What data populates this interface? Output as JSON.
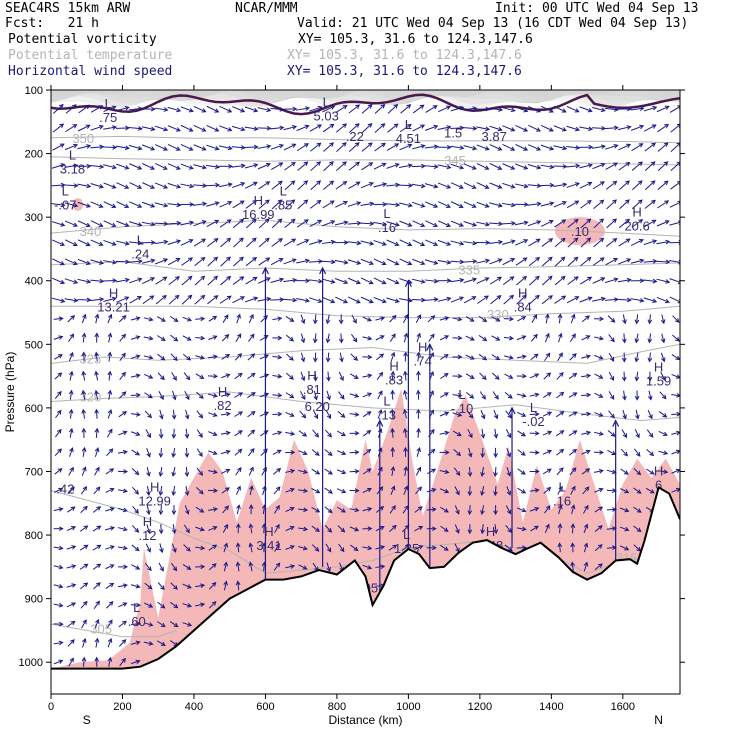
{
  "header": {
    "model": "SEAC4RS 15km ARW",
    "org": "NCAR/MMM",
    "init": "Init: 00 UTC Wed 04 Sep 13",
    "fcst": "Fcst:   21 h",
    "valid": "Valid: 21 UTC Wed 04 Sep 13 (16 CDT Wed 04 Sep 13)",
    "fields": [
      {
        "name": "Potential vorticity",
        "xy": "XY= 105.3, 31.6 to 124.3,147.6",
        "color": "#000000"
      },
      {
        "name": "Potential temperature",
        "xy": "XY= 105.3, 31.6 to 124.3,147.6",
        "color": "#b4b4b4"
      },
      {
        "name": "Horizontal wind speed",
        "xy": "XY= 105.3, 31.6 to 124.3,147.6",
        "color": "#1a1a7a"
      }
    ]
  },
  "chart_data": {
    "type": "cross-section",
    "xlabel": "Distance (km)",
    "ylabel": "Pressure (hPa)",
    "xlim": [
      0,
      1760
    ],
    "ylim": [
      1050,
      100
    ],
    "x_ticks": [
      0,
      200,
      400,
      600,
      800,
      1000,
      1200,
      1400,
      1600
    ],
    "y_ticks": [
      100,
      200,
      300,
      400,
      500,
      600,
      700,
      800,
      900,
      1000
    ],
    "x_end_labels": {
      "left": "S",
      "right": "N"
    },
    "colors": {
      "terrain": "#000000",
      "pv_contour": "#4a1a4a",
      "theta": "#b4b4b4",
      "wind": "#1a1a8a",
      "shade": "#f4b8b8",
      "label": "#3a2a6e"
    },
    "terrain": [
      [
        0,
        1010
      ],
      [
        100,
        1010
      ],
      [
        200,
        1010
      ],
      [
        250,
        1007
      ],
      [
        300,
        995
      ],
      [
        350,
        975
      ],
      [
        400,
        950
      ],
      [
        450,
        925
      ],
      [
        500,
        900
      ],
      [
        550,
        885
      ],
      [
        600,
        870
      ],
      [
        650,
        870
      ],
      [
        700,
        865
      ],
      [
        750,
        855
      ],
      [
        800,
        862
      ],
      [
        850,
        840
      ],
      [
        880,
        865
      ],
      [
        900,
        910
      ],
      [
        930,
        880
      ],
      [
        960,
        840
      ],
      [
        1000,
        822
      ],
      [
        1030,
        830
      ],
      [
        1060,
        852
      ],
      [
        1100,
        850
      ],
      [
        1140,
        828
      ],
      [
        1180,
        812
      ],
      [
        1220,
        808
      ],
      [
        1260,
        820
      ],
      [
        1300,
        830
      ],
      [
        1330,
        822
      ],
      [
        1370,
        812
      ],
      [
        1420,
        835
      ],
      [
        1460,
        858
      ],
      [
        1500,
        870
      ],
      [
        1540,
        860
      ],
      [
        1580,
        840
      ],
      [
        1620,
        838
      ],
      [
        1640,
        845
      ],
      [
        1660,
        810
      ],
      [
        1700,
        725
      ],
      [
        1730,
        735
      ],
      [
        1760,
        775
      ]
    ],
    "theta_contours": [
      {
        "label": "350",
        "p": [
          [
            0,
            175
          ],
          [
            200,
            173
          ],
          [
            400,
            176
          ],
          [
            600,
            175
          ],
          [
            800,
            178
          ],
          [
            1000,
            180
          ],
          [
            1200,
            180
          ],
          [
            1400,
            180
          ],
          [
            1600,
            181
          ],
          [
            1760,
            183
          ]
        ],
        "label_at": [
          60,
          183
        ]
      },
      {
        "label": "345",
        "p": [
          [
            0,
            205
          ],
          [
            200,
            208
          ],
          [
            400,
            210
          ],
          [
            600,
            212
          ],
          [
            800,
            210
          ],
          [
            1000,
            210
          ],
          [
            1200,
            212
          ],
          [
            1400,
            214
          ],
          [
            1600,
            216
          ],
          [
            1760,
            218
          ]
        ],
        "label_at": [
          1100,
          218
        ]
      },
      {
        "label": "340",
        "p": [
          [
            0,
            325
          ],
          [
            200,
            315
          ],
          [
            400,
            310
          ],
          [
            600,
            305
          ],
          [
            800,
            315
          ],
          [
            1000,
            320
          ],
          [
            1200,
            318
          ],
          [
            1400,
            320
          ],
          [
            1600,
            325
          ],
          [
            1760,
            330
          ]
        ],
        "label_at": [
          80,
          330
        ]
      },
      {
        "label": "335",
        "p": [
          [
            0,
            375
          ],
          [
            200,
            370
          ],
          [
            400,
            385
          ],
          [
            600,
            380
          ],
          [
            800,
            385
          ],
          [
            1000,
            385
          ],
          [
            1200,
            380
          ],
          [
            1400,
            378
          ],
          [
            1600,
            375
          ],
          [
            1760,
            372
          ]
        ],
        "label_at": [
          1140,
          390
        ]
      },
      {
        "label": "330",
        "p": [
          [
            0,
            440
          ],
          [
            200,
            440
          ],
          [
            400,
            440
          ],
          [
            600,
            445
          ],
          [
            800,
            455
          ],
          [
            1000,
            458
          ],
          [
            1200,
            458
          ],
          [
            1400,
            452
          ],
          [
            1600,
            448
          ],
          [
            1760,
            440
          ]
        ],
        "label_at": [
          1220,
          460
        ]
      },
      {
        "label": "325",
        "p": [
          [
            0,
            530
          ],
          [
            150,
            520
          ],
          [
            300,
            525
          ],
          [
            500,
            520
          ],
          [
            700,
            510
          ],
          [
            900,
            505
          ],
          [
            1100,
            520
          ],
          [
            1300,
            525
          ],
          [
            1500,
            530
          ],
          [
            1650,
            512
          ],
          [
            1760,
            500
          ]
        ],
        "label_at": [
          80,
          530
        ]
      },
      {
        "label": "320",
        "p": [
          [
            0,
            590
          ],
          [
            150,
            585
          ],
          [
            300,
            582
          ],
          [
            500,
            575
          ],
          [
            700,
            590
          ],
          [
            900,
            600
          ],
          [
            1100,
            605
          ],
          [
            1300,
            595
          ],
          [
            1500,
            610
          ],
          [
            1650,
            620
          ],
          [
            1760,
            615
          ]
        ],
        "label_at": [
          80,
          590
        ]
      },
      {
        "label": "315",
        "p": [
          [
            0,
            730
          ],
          [
            100,
            745
          ],
          [
            200,
            760
          ],
          [
            300,
            780
          ],
          [
            400,
            805
          ],
          [
            500,
            825
          ],
          [
            600,
            860
          ],
          [
            700,
            855
          ],
          [
            800,
            850
          ],
          [
            900,
            840
          ],
          [
            1000,
            820
          ],
          [
            1200,
            810
          ],
          [
            1400,
            830
          ],
          [
            1500,
            860
          ],
          [
            1600,
            840
          ],
          [
            1760,
            830
          ]
        ],
        "label_at": [
          1580,
          843
        ]
      },
      {
        "label": "305",
        "p": [
          [
            0,
            940
          ],
          [
            100,
            950
          ],
          [
            200,
            960
          ],
          [
            300,
            960
          ],
          [
            350,
            950
          ]
        ],
        "label_at": [
          110,
          955
        ]
      }
    ],
    "pv_highlights": [
      {
        "center": [
          1480,
          322
        ],
        "rx": 70,
        "ry": 22
      },
      {
        "center": [
          75,
          280
        ],
        "rx": 15,
        "ry": 10
      }
    ],
    "pv_profile": [
      [
        0,
        1010
      ],
      [
        80,
        1000
      ],
      [
        160,
        997
      ],
      [
        220,
        970
      ],
      [
        250,
        905
      ],
      [
        260,
        820
      ],
      [
        300,
        930
      ],
      [
        330,
        840
      ],
      [
        360,
        750
      ],
      [
        400,
        710
      ],
      [
        440,
        670
      ],
      [
        480,
        700
      ],
      [
        520,
        780
      ],
      [
        560,
        710
      ],
      [
        600,
        760
      ],
      [
        640,
        740
      ],
      [
        680,
        650
      ],
      [
        720,
        700
      ],
      [
        760,
        790
      ],
      [
        800,
        745
      ],
      [
        840,
        760
      ],
      [
        880,
        650
      ],
      [
        900,
        700
      ],
      [
        940,
        640
      ],
      [
        980,
        570
      ],
      [
        1010,
        680
      ],
      [
        1040,
        770
      ],
      [
        1080,
        700
      ],
      [
        1130,
        610
      ],
      [
        1160,
        580
      ],
      [
        1200,
        640
      ],
      [
        1250,
        720
      ],
      [
        1280,
        660
      ],
      [
        1320,
        780
      ],
      [
        1360,
        690
      ],
      [
        1400,
        760
      ],
      [
        1440,
        730
      ],
      [
        1480,
        650
      ],
      [
        1520,
        720
      ],
      [
        1560,
        790
      ],
      [
        1600,
        720
      ],
      [
        1640,
        680
      ],
      [
        1680,
        710
      ],
      [
        1720,
        680
      ],
      [
        1760,
        720
      ]
    ],
    "labels": [
      {
        "t": "L",
        "v": ".75",
        "x": 160,
        "p": 147
      },
      {
        "t": "L",
        "v": "5.03",
        "x": 770,
        "p": 145
      },
      {
        "t": "",
        "v": ".22",
        "x": 850,
        "p": 180
      },
      {
        "t": "L",
        "v": "4.51",
        "x": 1000,
        "p": 180
      },
      {
        "t": "",
        "v": "1.5",
        "x": 1125,
        "p": 175
      },
      {
        "t": "",
        "v": "3.87",
        "x": 1240,
        "p": 180
      },
      {
        "t": "L",
        "v": "3.18",
        "x": 60,
        "p": 228
      },
      {
        "t": "L",
        "v": "-.07",
        "x": 40,
        "p": 285
      },
      {
        "t": "L",
        "v": ".24",
        "x": 250,
        "p": 362
      },
      {
        "t": "H",
        "v": "13.21",
        "x": 175,
        "p": 445
      },
      {
        "t": "H",
        "v": "16.99",
        "x": 580,
        "p": 300
      },
      {
        "t": "L",
        "v": ".85",
        "x": 650,
        "p": 285
      },
      {
        "t": "L",
        "v": ".16",
        "x": 940,
        "p": 320
      },
      {
        "t": "",
        "v": ".10",
        "x": 1480,
        "p": 330
      },
      {
        "t": "H",
        "v": "20.6",
        "x": 1640,
        "p": 318
      },
      {
        "t": "H",
        "v": ".84",
        "x": 1320,
        "p": 445
      },
      {
        "t": "H",
        "v": ".74",
        "x": 1040,
        "p": 530
      },
      {
        "t": "H",
        "v": ".83",
        "x": 960,
        "p": 560
      },
      {
        "t": "H",
        "v": ".81",
        "x": 730,
        "p": 575
      },
      {
        "t": "H",
        "v": ".82",
        "x": 480,
        "p": 600
      },
      {
        "t": "",
        "v": "6.20",
        "x": 745,
        "p": 605
      },
      {
        "t": "L",
        "v": ".13",
        "x": 940,
        "p": 615
      },
      {
        "t": "L",
        "v": "-.10",
        "x": 1150,
        "p": 605
      },
      {
        "t": "L",
        "v": "-.02",
        "x": 1350,
        "p": 625
      },
      {
        "t": "H",
        "v": "1.59",
        "x": 1700,
        "p": 562
      },
      {
        "t": "",
        "v": ".42",
        "x": 40,
        "p": 735
      },
      {
        "t": "H",
        "v": "12.99",
        "x": 290,
        "p": 750
      },
      {
        "t": "H",
        "v": ".12",
        "x": 270,
        "p": 805
      },
      {
        "t": "H",
        "v": "3.41",
        "x": 610,
        "p": 820
      },
      {
        "t": "L",
        "v": "1.35",
        "x": 995,
        "p": 825
      },
      {
        "t": "H",
        "v": "1.48",
        "x": 1230,
        "p": 820
      },
      {
        "t": "L",
        "v": ".16",
        "x": 1430,
        "p": 750
      },
      {
        "t": "H",
        "v": "6",
        "x": 1700,
        "p": 725
      },
      {
        "t": "",
        "v": ".05",
        "x": 890,
        "p": 890
      },
      {
        "t": "L",
        "v": ".60",
        "x": 240,
        "p": 940
      }
    ],
    "wind_arrows": "uniform grid of horizontal wind arrows throughout the section, mostly directed right (southerly flow), with strong vertical arrows in columns near 600, 760, 920, 1000 km"
  }
}
